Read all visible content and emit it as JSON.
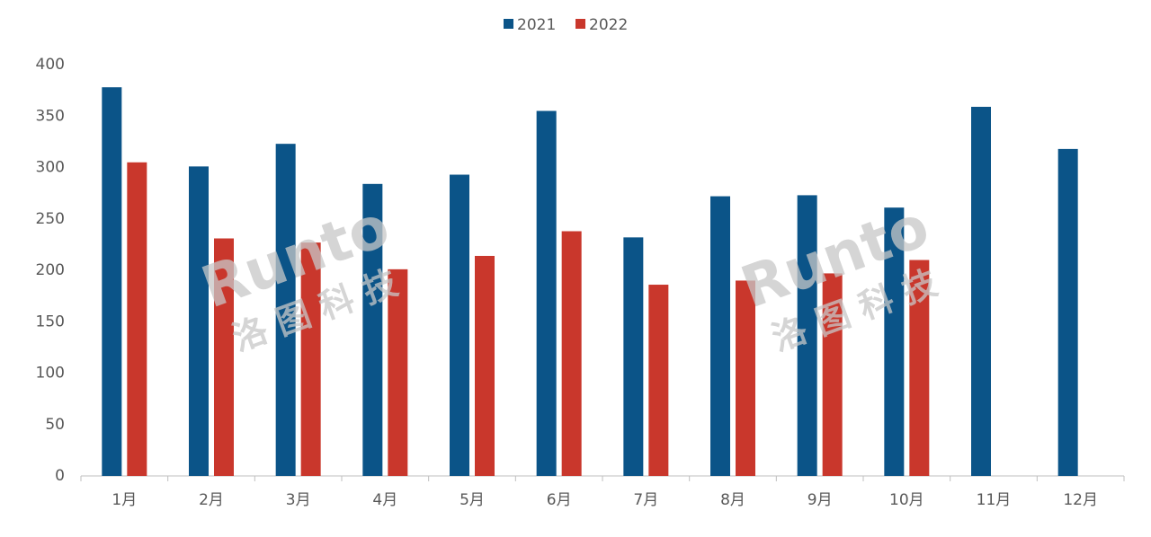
{
  "chart_data": {
    "type": "bar",
    "categories": [
      "1月",
      "2月",
      "3月",
      "4月",
      "5月",
      "6月",
      "7月",
      "8月",
      "9月",
      "10月",
      "11月",
      "12月"
    ],
    "series": [
      {
        "name": "2021",
        "color": "#0b5488",
        "values": [
          378,
          301,
          323,
          284,
          293,
          355,
          232,
          272,
          273,
          261,
          359,
          318
        ]
      },
      {
        "name": "2022",
        "color": "#c9372c",
        "values": [
          305,
          231,
          227,
          201,
          214,
          238,
          186,
          190,
          197,
          210,
          null,
          null
        ]
      }
    ],
    "ylim": [
      0,
      400
    ],
    "yticks": [
      0,
      50,
      100,
      150,
      200,
      250,
      300,
      350,
      400
    ],
    "grid": false,
    "legend": "top",
    "watermark": {
      "brand": "Runto",
      "name": "洛 图 科 技"
    }
  }
}
